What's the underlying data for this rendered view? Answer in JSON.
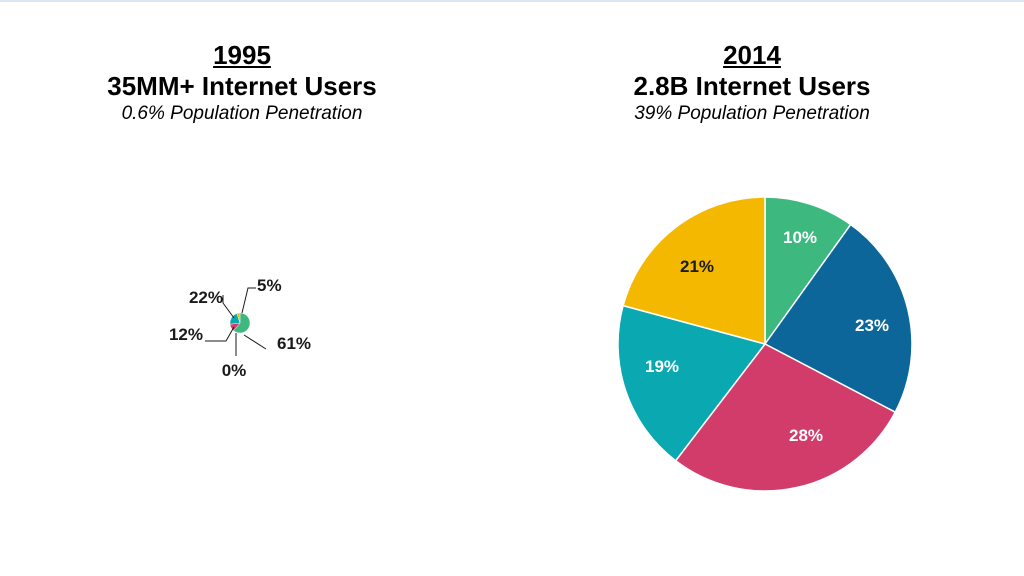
{
  "colors": {
    "green": "#3db87f",
    "blue": "#0c6699",
    "pink": "#d13c6b",
    "teal": "#0aa8b0",
    "yellow": "#f5b800"
  },
  "chart_data": [
    {
      "type": "pie",
      "year": "1995",
      "headline": "35MM+ Internet Users",
      "subtitle": "0.6% Population Penetration",
      "slices": [
        {
          "value": 61,
          "label": "61%",
          "color": "green"
        },
        {
          "value": 0,
          "label": "0%",
          "color": "blue"
        },
        {
          "value": 12,
          "label": "12%",
          "color": "pink"
        },
        {
          "value": 22,
          "label": "22%",
          "color": "teal"
        },
        {
          "value": 5,
          "label": "5%",
          "color": "yellow"
        }
      ]
    },
    {
      "type": "pie",
      "year": "2014",
      "headline": "2.8B Internet Users",
      "subtitle": "39% Population Penetration",
      "slices": [
        {
          "value": 10,
          "label": "10%",
          "color": "green"
        },
        {
          "value": 23,
          "label": "23%",
          "color": "blue"
        },
        {
          "value": 28,
          "label": "28%",
          "color": "pink"
        },
        {
          "value": 19,
          "label": "19%",
          "color": "teal"
        },
        {
          "value": 21,
          "label": "21%",
          "color": "yellow"
        }
      ]
    }
  ]
}
